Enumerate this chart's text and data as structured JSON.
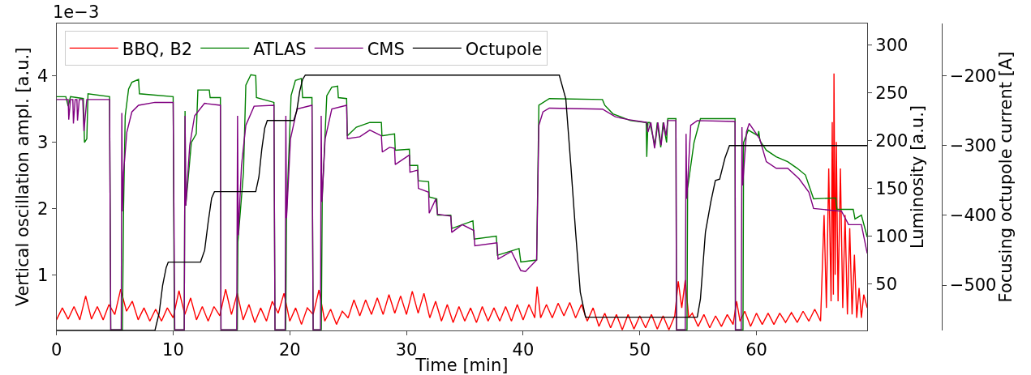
{
  "chart_data": {
    "type": "line",
    "xlabel": "Time [min]",
    "ylabel": "Vertical oscillation ampl. [a.u.]",
    "y2label": "Luminosity [a.u.]",
    "y3label": "Focusing octupole current [A]",
    "annotations": [
      "1e−3"
    ],
    "xlim": [
      0,
      69.5
    ],
    "xticks": [
      0,
      10,
      20,
      30,
      40,
      50,
      60
    ],
    "ylim": [
      0.16,
      4.785
    ],
    "yticks": [
      1,
      2,
      3,
      4
    ],
    "y2lim": [
      1.3,
      322.6
    ],
    "y2ticks": [
      50,
      100,
      150,
      200,
      250,
      300
    ],
    "y3lim": [
      -565,
      -125
    ],
    "y3ticks": [
      {
        "value": -500,
        "label": "−500"
      },
      {
        "value": -400,
        "label": "−400"
      },
      {
        "value": -300,
        "label": "−300"
      },
      {
        "value": -200,
        "label": "−200"
      }
    ],
    "legend": "top left",
    "series": [
      {
        "name": "BBQ, B2",
        "color": "#ff0000",
        "axis": "y",
        "x": [
          0,
          0.5,
          1,
          1.5,
          2,
          2.5,
          3,
          3.5,
          4,
          4.5,
          5,
          5.5,
          6,
          6.5,
          7,
          7.5,
          8,
          8.5,
          9,
          9.5,
          10,
          10.5,
          11,
          11.5,
          12,
          12.5,
          13,
          13.5,
          14,
          14.5,
          15,
          15.5,
          16,
          16.5,
          17,
          17.5,
          18,
          18.5,
          19,
          19.5,
          20,
          20.5,
          21,
          21.5,
          22,
          22.5,
          23,
          23.5,
          24,
          24.5,
          25,
          25.5,
          26,
          26.5,
          27,
          27.5,
          28,
          28.5,
          29,
          29.5,
          30,
          30.5,
          31,
          31.5,
          32,
          32.5,
          33,
          33.5,
          34,
          34.5,
          35,
          35.5,
          36,
          36.5,
          37,
          37.5,
          38,
          38.5,
          39,
          39.5,
          40,
          40.5,
          41,
          41.2,
          41.5,
          42,
          42.5,
          43,
          43.5,
          44,
          44.5,
          45,
          45.5,
          46,
          46.5,
          47,
          47.5,
          48,
          48.5,
          49,
          49.5,
          50,
          50.5,
          51,
          51.5,
          52,
          52.5,
          53,
          53.3,
          53.6,
          53.9,
          54.2,
          54.5,
          55,
          55.5,
          56,
          56.5,
          57,
          57.5,
          58,
          58.3,
          58.6,
          59,
          59.5,
          60,
          60.5,
          61,
          61.5,
          62,
          62.5,
          63,
          63.5,
          64,
          64.5,
          65,
          65.5,
          65.8,
          66.0,
          66.2,
          66.4,
          66.5,
          66.6,
          66.65,
          66.75,
          66.85,
          67.0,
          67.2,
          67.4,
          67.6,
          67.8,
          68.0,
          68.2,
          68.4,
          68.6,
          68.8,
          69.0,
          69.2,
          69.5
        ],
        "values": [
          0.32,
          0.5,
          0.33,
          0.52,
          0.32,
          0.68,
          0.33,
          0.52,
          0.32,
          0.55,
          0.4,
          0.78,
          0.45,
          0.6,
          0.32,
          0.5,
          0.3,
          0.48,
          0.3,
          0.5,
          0.35,
          0.76,
          0.4,
          0.65,
          0.32,
          0.52,
          0.3,
          0.52,
          0.38,
          0.78,
          0.4,
          0.72,
          0.32,
          0.55,
          0.28,
          0.5,
          0.3,
          0.6,
          0.42,
          0.72,
          0.3,
          0.5,
          0.25,
          0.5,
          0.4,
          0.77,
          0.3,
          0.48,
          0.25,
          0.45,
          0.35,
          0.62,
          0.38,
          0.62,
          0.4,
          0.65,
          0.4,
          0.7,
          0.42,
          0.68,
          0.4,
          0.75,
          0.42,
          0.72,
          0.35,
          0.6,
          0.3,
          0.55,
          0.28,
          0.52,
          0.3,
          0.5,
          0.28,
          0.52,
          0.3,
          0.5,
          0.3,
          0.52,
          0.3,
          0.55,
          0.32,
          0.55,
          0.35,
          0.82,
          0.35,
          0.55,
          0.35,
          0.57,
          0.38,
          0.58,
          0.35,
          0.55,
          0.3,
          0.5,
          0.22,
          0.42,
          0.2,
          0.4,
          0.17,
          0.4,
          0.18,
          0.38,
          0.2,
          0.4,
          0.18,
          0.38,
          0.17,
          0.38,
          0.9,
          0.5,
          0.92,
          0.35,
          0.42,
          0.22,
          0.4,
          0.2,
          0.38,
          0.22,
          0.4,
          0.25,
          0.6,
          0.3,
          0.45,
          0.22,
          0.42,
          0.25,
          0.42,
          0.25,
          0.42,
          0.28,
          0.43,
          0.28,
          0.45,
          0.3,
          0.48,
          0.3,
          1.9,
          0.5,
          2.6,
          0.6,
          3.3,
          0.7,
          4.03,
          1.0,
          3.0,
          0.6,
          2.6,
          0.5,
          1.9,
          0.4,
          1.7,
          0.4,
          1.3,
          0.35,
          0.8,
          0.35,
          0.7,
          0.5
        ]
      },
      {
        "name": "ATLAS",
        "color": "#008000",
        "axis": "y2",
        "x": [
          0,
          0.8,
          1.0,
          1.2,
          2.3,
          2.4,
          2.6,
          2.7,
          4.55,
          4.65,
          5.65,
          5.75,
          5.89,
          6.18,
          6.46,
          7.03,
          7.11,
          10.0,
          10.1,
          10.95,
          11.02,
          11.08,
          11.56,
          11.98,
          12.12,
          13.1,
          13.17,
          14.05,
          14.1,
          15.5,
          15.55,
          16.03,
          16.23,
          16.66,
          17.08,
          17.14,
          18.64,
          18.73,
          19.65,
          19.72,
          20.11,
          20.48,
          20.99,
          21.1,
          21.9,
          22.0,
          22.7,
          22.78,
          23.17,
          23.6,
          24.1,
          24.16,
          24.87,
          24.93,
          25.7,
          26.86,
          27.85,
          27.9,
          28.98,
          29.04,
          30.25,
          30.3,
          30.96,
          31.02,
          31.9,
          31.95,
          32.6,
          32.66,
          33.8,
          33.88,
          35.7,
          35.8,
          37.7,
          37.8,
          39.65,
          39.8,
          41.16,
          41.35,
          42.25,
          46.8,
          47.0,
          47.7,
          49.2,
          50.55,
          50.6,
          50.7,
          50.85,
          51.3,
          51.5,
          51.8,
          52.0,
          52.3,
          52.4,
          53.1,
          53.15,
          54.05,
          54.1,
          54.65,
          55.2,
          58.17,
          58.2,
          58.85,
          58.9,
          59.3,
          60.14,
          60.2,
          60.3,
          60.85,
          61.7,
          62.68,
          63.5,
          64.2,
          64.9,
          66.8,
          66.9,
          68.3,
          68.45,
          69.0,
          69.5
        ],
        "values": [
          246,
          246,
          236,
          246,
          244,
          198,
          202,
          249,
          246,
          2,
          2,
          130,
          226,
          254,
          261,
          264,
          249,
          246,
          2,
          2,
          231,
          132,
          198,
          207,
          253,
          253,
          245,
          245,
          2,
          2,
          94,
          167,
          258,
          269,
          268,
          245,
          240,
          2,
          2,
          122,
          247,
          263,
          265,
          245,
          245,
          2,
          2,
          139,
          247,
          256,
          257,
          245,
          244,
          205,
          214,
          219,
          219,
          205,
          207,
          190,
          191,
          174,
          174,
          158,
          157,
          141,
          139,
          122,
          122,
          108,
          116,
          97,
          100,
          80,
          87,
          73,
          75,
          237,
          244,
          243,
          237,
          228,
          221,
          219,
          183,
          219,
          219,
          195,
          219,
          193,
          219,
          198,
          223,
          223,
          2,
          2,
          150,
          198,
          223,
          223,
          2,
          2,
          198,
          211,
          205,
          210,
          200,
          190,
          183,
          178,
          171,
          164,
          139,
          140,
          128,
          128,
          118,
          122,
          99
        ]
      },
      {
        "name": "CMS",
        "color": "#800080",
        "axis": "y2",
        "x": [
          0,
          1.0,
          1.05,
          1.2,
          1.4,
          1.45,
          1.6,
          1.75,
          1.8,
          1.95,
          2.25,
          2.35,
          2.6,
          4.55,
          4.65,
          5.55,
          5.6,
          5.65,
          5.75,
          6.03,
          6.46,
          7.03,
          8.44,
          10.0,
          10.14,
          10.95,
          11.02,
          11.08,
          11.42,
          11.84,
          12.69,
          14.05,
          14.1,
          15.45,
          15.52,
          15.58,
          15.86,
          16.23,
          16.94,
          18.64,
          18.73,
          19.6,
          19.66,
          19.72,
          20.06,
          20.62,
          21.9,
          22.0,
          22.63,
          22.69,
          22.75,
          23.03,
          23.6,
          24.87,
          24.93,
          26.0,
          26.86,
          27.85,
          27.93,
          28.55,
          28.98,
          29.04,
          30.25,
          30.3,
          30.96,
          31.02,
          31.9,
          31.95,
          32.52,
          32.66,
          33.8,
          33.88,
          34.78,
          35.78,
          35.86,
          37.76,
          37.85,
          39.0,
          39.8,
          40.2,
          41.16,
          41.35,
          41.7,
          42.25,
          46.8,
          47.9,
          49.0,
          50.6,
          50.7,
          50.95,
          51.27,
          51.55,
          51.83,
          52.05,
          52.25,
          52.4,
          53.1,
          53.15,
          53.9,
          53.97,
          54.03,
          54.37,
          54.93,
          58.17,
          58.2,
          58.7,
          58.76,
          58.82,
          59.15,
          59.38,
          60.28,
          60.85,
          61.7,
          62.68,
          63.66,
          64.5,
          64.9,
          67.3,
          67.9,
          69.0,
          69.5
        ],
        "values": [
          243,
          243,
          222,
          243,
          243,
          218,
          243,
          243,
          221,
          243,
          243,
          210,
          243,
          243,
          2,
          2,
          229,
          126,
          167,
          209,
          230,
          237,
          240,
          240,
          2,
          2,
          226,
          132,
          195,
          226,
          239,
          237,
          2,
          2,
          226,
          101,
          174,
          216,
          236,
          237,
          2,
          2,
          226,
          119,
          202,
          233,
          237,
          2,
          2,
          226,
          136,
          202,
          233,
          237,
          202,
          204,
          211,
          205,
          188,
          193,
          192,
          175,
          185,
          167,
          169,
          150,
          146,
          124,
          139,
          123,
          121,
          104,
          112,
          106,
          90,
          93,
          76,
          84,
          64,
          63,
          75,
          216,
          230,
          234,
          233,
          225,
          222,
          219,
          209,
          219,
          192,
          219,
          195,
          219,
          205,
          221,
          221,
          2,
          2,
          207,
          139,
          216,
          221,
          220,
          2,
          2,
          214,
          153,
          209,
          218,
          202,
          178,
          171,
          171,
          160,
          146,
          129,
          126,
          112,
          112,
          82
        ]
      },
      {
        "name": "Octupole",
        "color": "#000000",
        "axis": "y3",
        "x": [
          0,
          8.44,
          8.8,
          9.1,
          9.4,
          9.58,
          12.35,
          12.7,
          13.0,
          13.3,
          13.54,
          17.08,
          17.35,
          17.6,
          17.85,
          18.07,
          20.34,
          20.6,
          20.85,
          21.1,
          21.33,
          43.1,
          43.66,
          44.1,
          44.5,
          44.9,
          45.35,
          54.93,
          55.2,
          55.63,
          56.1,
          56.48,
          56.85,
          57.3,
          57.69,
          69.5
        ],
        "values": [
          -565,
          -565,
          -540,
          -500,
          -475,
          -467,
          -467,
          -450,
          -410,
          -375,
          -366,
          -366,
          -345,
          -305,
          -275,
          -264,
          -264,
          -250,
          -222,
          -205,
          -199,
          -199,
          -233,
          -330,
          -424,
          -510,
          -546,
          -546,
          -520,
          -424,
          -380,
          -350,
          -348,
          -318,
          -300,
          -300
        ]
      }
    ]
  }
}
